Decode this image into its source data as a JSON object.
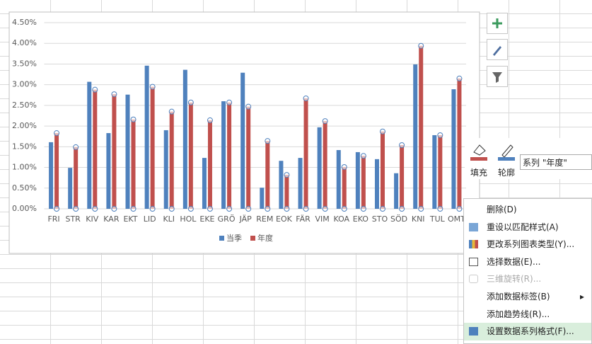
{
  "chart_data": {
    "type": "bar",
    "categories": [
      "FRI",
      "STR",
      "KIV",
      "KAR",
      "EKT",
      "LID",
      "KLI",
      "HOL",
      "EKE",
      "GRÖ",
      "JÄP",
      "REM",
      "EOK",
      "FÄR",
      "VIM",
      "KOA",
      "EKO",
      "STO",
      "SÖD",
      "KNI",
      "TUL",
      "OMT"
    ],
    "series": [
      {
        "name": "当季",
        "color": "#4f81bd",
        "values": [
          1.61,
          0.99,
          3.07,
          1.83,
          2.76,
          3.46,
          1.9,
          3.36,
          1.23,
          2.6,
          3.29,
          0.51,
          1.16,
          1.23,
          1.97,
          1.42,
          1.37,
          1.2,
          0.86,
          3.49,
          1.78,
          2.89
        ]
      },
      {
        "name": "年度",
        "color": "#c0504d",
        "values": [
          1.83,
          1.49,
          2.88,
          2.77,
          2.16,
          2.95,
          2.35,
          2.57,
          2.14,
          2.57,
          2.47,
          1.64,
          0.82,
          2.67,
          2.12,
          1.01,
          1.28,
          1.87,
          1.54,
          3.94,
          1.78,
          3.15
        ]
      }
    ],
    "ylim": [
      0,
      4.5
    ],
    "yticks": [
      {
        "value": 0,
        "label": "0.00%"
      },
      {
        "value": 0.5,
        "label": "0.50%"
      },
      {
        "value": 1,
        "label": "1.00%"
      },
      {
        "value": 1.5,
        "label": "1.50%"
      },
      {
        "value": 2,
        "label": "2.00%"
      },
      {
        "value": 2.5,
        "label": "2.50%"
      },
      {
        "value": 3,
        "label": "3.00%"
      },
      {
        "value": 3.5,
        "label": "3.50%"
      },
      {
        "value": 4,
        "label": "4.00%"
      },
      {
        "value": 4.5,
        "label": "4.50%"
      }
    ],
    "grid": true,
    "legend": "bottom"
  },
  "format_toolbar": {
    "fill": "填充",
    "outline": "轮廓",
    "series_selector": "系列 \"年度\""
  },
  "context_menu": {
    "items": [
      "删除(D)",
      "重设以匹配样式(A)",
      "更改系列图表类型(Y)...",
      "选择数据(E)...",
      "三维旋转(R)...",
      "添加数据标签(B)",
      "添加趋势线(R)...",
      "设置数据系列格式(F)..."
    ]
  }
}
